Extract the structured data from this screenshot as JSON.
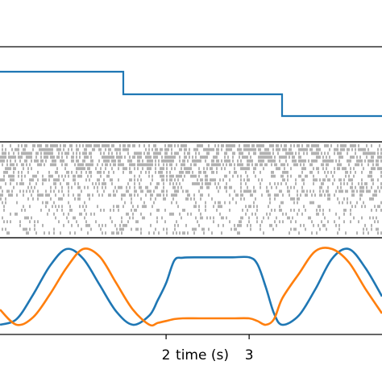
{
  "chart_data": [
    {
      "type": "line",
      "panel": "step-signal",
      "grid": false,
      "xlim": [
        0,
        4.6
      ],
      "ylim": [
        0,
        1
      ],
      "series": [
        {
          "color": "#1f77b4",
          "step": true,
          "x": [
            0,
            2,
            2,
            3,
            3,
            4.6
          ],
          "y": [
            0.8,
            0.8,
            0.6,
            0.6,
            0.4,
            0.4
          ]
        }
      ]
    },
    {
      "type": "heatmap",
      "panel": "spike-raster",
      "grid": false,
      "description_free": true,
      "color": "#000000",
      "rows": 24,
      "xlim": [
        0,
        4.6
      ]
    },
    {
      "type": "line",
      "panel": "oscillations",
      "grid": false,
      "xlim": [
        0,
        4.6
      ],
      "ylim": [
        -1.1,
        1.1
      ],
      "xlabel": "time (s)",
      "xticks": [
        2,
        3
      ],
      "xticklabels": [
        "2",
        "3"
      ],
      "series": [
        {
          "color": "#1f77b4",
          "x": [
            0,
            0.2,
            0.4,
            0.6,
            0.8,
            1.0,
            1.2,
            1.4,
            1.6,
            1.8,
            1.9,
            2.0,
            2.1,
            2.2,
            2.4,
            2.6,
            2.8,
            3.0,
            3.1,
            3.2,
            3.3,
            3.4,
            3.6,
            3.8,
            4.0,
            4.2,
            4.4,
            4.6
          ],
          "y": [
            -1.0,
            -0.85,
            -0.2,
            0.55,
            1.0,
            0.75,
            0.05,
            -0.65,
            -1.0,
            -0.75,
            -0.35,
            0.1,
            0.7,
            0.77,
            0.78,
            0.78,
            0.78,
            0.78,
            0.6,
            0.0,
            -0.7,
            -1.0,
            -0.75,
            -0.05,
            0.75,
            1.0,
            0.5,
            -0.25
          ]
        },
        {
          "color": "#ff7f0e",
          "x": [
            0,
            0.2,
            0.4,
            0.6,
            0.8,
            1.0,
            1.2,
            1.4,
            1.6,
            1.8,
            1.9,
            2.0,
            2.1,
            2.2,
            2.4,
            2.6,
            2.8,
            3.0,
            3.1,
            3.2,
            3.3,
            3.4,
            3.6,
            3.8,
            4.0,
            4.2,
            4.4,
            4.6
          ],
          "y": [
            -0.6,
            -1.0,
            -0.8,
            -0.2,
            0.5,
            1.0,
            0.8,
            0.1,
            -0.6,
            -1.0,
            -0.95,
            -0.9,
            -0.85,
            -0.83,
            -0.83,
            -0.83,
            -0.83,
            -0.83,
            -0.9,
            -1.0,
            -0.85,
            -0.3,
            0.35,
            0.95,
            1.0,
            0.65,
            -0.05,
            -0.7
          ]
        }
      ]
    }
  ]
}
